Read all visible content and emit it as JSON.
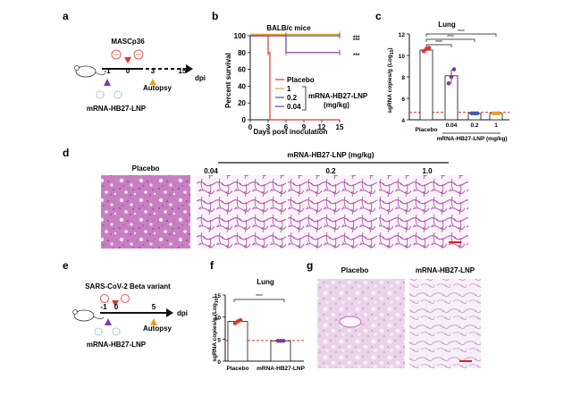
{
  "panels": {
    "a": {
      "letter": "a",
      "drug": "MASCp36",
      "days": [
        "-1",
        "0",
        "3",
        "15"
      ],
      "unit": "dpi",
      "autopsy": "Autopsy",
      "vaccine": "mRNA-HB27-LNP"
    },
    "b": {
      "letter": "b",
      "title": "BALB/c mice",
      "ylabel": "Percent survival",
      "xlabel": "Days post inoculation",
      "legend_title": "mRNA-HB27-LNP",
      "legend_unit": "(mg/kg)",
      "stars": "***"
    },
    "c": {
      "letter": "c",
      "title": "Lung",
      "ylabel": "sgRNA copies/g (Log",
      "ylabel_sub": "10",
      "ylabel_end": ")",
      "xlabel_left": "Placebo",
      "xlabel_right": "mRNA-HB27-LNP (mg/kg)",
      "sig": "****",
      "dose_labels": [
        "0.04",
        "0.2",
        "1"
      ]
    },
    "d": {
      "letter": "d",
      "placebo": "Placebo",
      "group": "mRNA-HB27-LNP (mg/kg)",
      "doses": [
        "0.04",
        "0.2",
        "1.0"
      ]
    },
    "e": {
      "letter": "e",
      "virus": "SARS-CoV-2 Beta variant",
      "days": [
        "-1",
        "0",
        "5"
      ],
      "unit": "dpi",
      "autopsy": "Autopsy",
      "vaccine": "mRNA-HB27-LNP"
    },
    "f": {
      "letter": "f",
      "title": "Lung",
      "ylabel": "sgRNA copies/g (Log",
      "ylabel_sub": "10",
      "ylabel_end": ")",
      "sig": "****"
    },
    "g": {
      "letter": "g",
      "placebo": "Placebo",
      "vaccine": "mRNA-HB27-LNP"
    }
  },
  "colors": {
    "placebo": "#d9372b",
    "dose_1": "#e4a21c",
    "dose_02": "#3a55b4",
    "dose_004": "#7a3c9c",
    "lod": "#d9372b",
    "he_pink": "#e8b8dd",
    "he_purple": "#8a3b98"
  },
  "chart_data": [
    {
      "id": "b",
      "type": "line",
      "title": "BALB/c mice",
      "xlabel": "Days post inoculation",
      "ylabel": "Percent survival",
      "xticks": [
        0,
        3,
        6,
        9,
        12,
        15
      ],
      "yticks": [
        0,
        20,
        40,
        60,
        80,
        100
      ],
      "xlim": [
        0,
        15
      ],
      "ylim": [
        0,
        100
      ],
      "series": [
        {
          "name": "Placebo",
          "x": [
            0,
            3,
            3,
            3.3,
            3.3,
            15
          ],
          "y": [
            100,
            100,
            80,
            80,
            0,
            0
          ]
        },
        {
          "name": "1",
          "x": [
            0,
            15
          ],
          "y": [
            100,
            100
          ]
        },
        {
          "name": "0.2",
          "x": [
            0,
            15
          ],
          "y": [
            100,
            100
          ]
        },
        {
          "name": "0.04",
          "x": [
            0,
            6,
            6,
            15
          ],
          "y": [
            100,
            100,
            80,
            80
          ]
        }
      ]
    },
    {
      "id": "c",
      "type": "bar",
      "title": "Lung",
      "categories": [
        "Placebo",
        "0.04",
        "0.2",
        "1"
      ],
      "values": [
        10.5,
        8.1,
        4.6,
        4.6
      ],
      "points": [
        [
          10.4,
          10.6,
          10.7
        ],
        [
          7.4,
          8.0,
          8.7
        ],
        [
          4.6,
          4.6,
          4.6
        ],
        [
          4.6,
          4.6,
          4.6
        ]
      ],
      "yticks": [
        4,
        6,
        8,
        10,
        12
      ],
      "ylim": [
        4,
        12
      ],
      "lod": 4.7
    },
    {
      "id": "f",
      "type": "bar",
      "title": "Lung",
      "categories": [
        "Placebo",
        "mRNA-HB27-LNP"
      ],
      "values": [
        9.0,
        4.6
      ],
      "points": [
        [
          8.6,
          9.0,
          9.3
        ],
        [
          4.6,
          4.6,
          4.6
        ]
      ],
      "yticks": [
        0,
        5,
        10,
        15
      ],
      "ylim": [
        0,
        15
      ],
      "lod": 4.7
    }
  ]
}
